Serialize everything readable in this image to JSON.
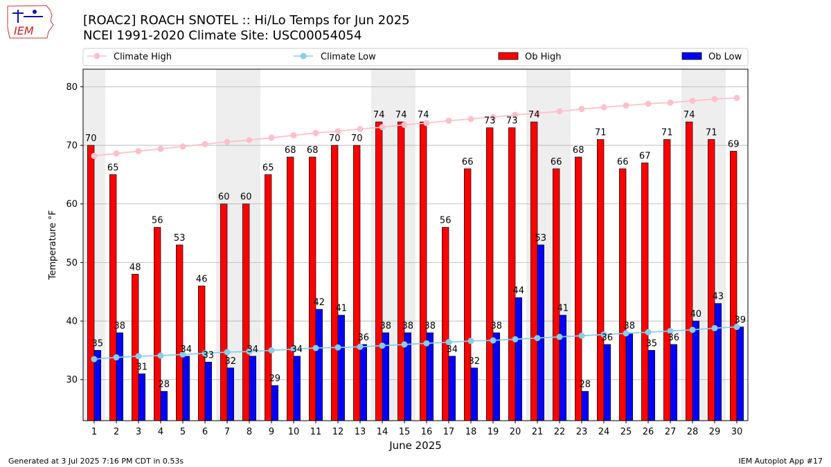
{
  "header": {
    "logo_text": "IEM",
    "title_line1": "[ROAC2] ROACH SNOTEL :: Hi/Lo Temps for Jun 2025",
    "title_line2": "NCEI 1991-2020 Climate Site: USC00054054"
  },
  "footer": {
    "generated": "Generated at 3 Jul 2025 7:16 PM CDT in 0.53s",
    "app": "IEM Autoplot App #17"
  },
  "colors": {
    "ob_high": "#ff0000",
    "ob_low": "#0000ff",
    "climate_high": "#ffc0cb",
    "climate_low": "#87ceeb",
    "weekend_shade": "#eeeeee",
    "grid": "#b0b0b0"
  },
  "chart_data": {
    "type": "bar",
    "xlabel": "June 2025",
    "ylabel": "Temperature °F",
    "ylim": [
      23,
      83
    ],
    "yticks": [
      30,
      40,
      50,
      60,
      70,
      80
    ],
    "grid": "horizontal",
    "legend_position": "top",
    "categories": [
      "1",
      "2",
      "3",
      "4",
      "5",
      "6",
      "7",
      "8",
      "9",
      "10",
      "11",
      "12",
      "13",
      "14",
      "15",
      "16",
      "17",
      "18",
      "19",
      "20",
      "21",
      "22",
      "23",
      "24",
      "25",
      "26",
      "27",
      "28",
      "29",
      "30"
    ],
    "weekend_days": [
      1,
      7,
      8,
      14,
      15,
      21,
      22,
      28,
      29
    ],
    "series": [
      {
        "name": "Ob High",
        "kind": "bar",
        "values": [
          70,
          65,
          48,
          56,
          53,
          46,
          60,
          60,
          65,
          68,
          68,
          70,
          70,
          74,
          74,
          74,
          56,
          66,
          73,
          73,
          74,
          66,
          68,
          71,
          66,
          67,
          71,
          74,
          71,
          69
        ]
      },
      {
        "name": "Ob Low",
        "kind": "bar",
        "values": [
          35,
          38,
          31,
          28,
          34,
          33,
          32,
          34,
          29,
          34,
          42,
          41,
          36,
          38,
          38,
          38,
          34,
          32,
          38,
          44,
          53,
          41,
          28,
          36,
          38,
          35,
          36,
          40,
          43,
          39
        ]
      },
      {
        "name": "Climate High",
        "kind": "line",
        "values": [
          68.2,
          68.6,
          69.0,
          69.4,
          69.8,
          70.2,
          70.6,
          70.9,
          71.3,
          71.7,
          72.1,
          72.4,
          72.8,
          73.1,
          73.5,
          73.8,
          74.2,
          74.5,
          74.8,
          75.2,
          75.5,
          75.8,
          76.2,
          76.5,
          76.8,
          77.1,
          77.3,
          77.6,
          77.9,
          78.1
        ]
      },
      {
        "name": "Climate Low",
        "kind": "line",
        "values": [
          33.5,
          33.8,
          34.0,
          34.1,
          34.3,
          34.5,
          34.7,
          34.8,
          35.0,
          35.2,
          35.4,
          35.5,
          35.6,
          35.8,
          36.0,
          36.2,
          36.4,
          36.6,
          36.7,
          36.9,
          37.1,
          37.3,
          37.5,
          37.7,
          37.9,
          38.1,
          38.3,
          38.5,
          38.8,
          39.0
        ]
      }
    ]
  }
}
